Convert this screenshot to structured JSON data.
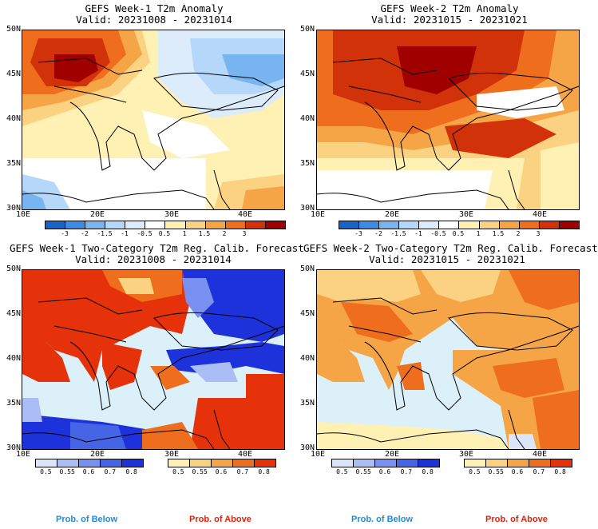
{
  "panels": [
    {
      "id": "p1",
      "title_line1": "GEFS Week-1 T2m Anomaly",
      "title_line2": "Valid: 20231008 - 20231014",
      "lat_labels": [
        "50N",
        "45N",
        "40N",
        "35N",
        "30N"
      ],
      "lon_labels": [
        "10E",
        "20E",
        "30E",
        "40E"
      ]
    },
    {
      "id": "p2",
      "title_line1": "GEFS Week-2 T2m Anomaly",
      "title_line2": "Valid: 20231015 - 20231021",
      "lat_labels": [
        "50N",
        "45N",
        "40N",
        "35N",
        "30N"
      ],
      "lon_labels": [
        "10E",
        "20E",
        "30E",
        "40E"
      ]
    },
    {
      "id": "p3",
      "title_line1": "GEFS Week-1 Two-Category T2m Reg. Calib. Forecast",
      "title_line2": "Valid: 20231008 - 20231014",
      "lat_labels": [
        "50N",
        "45N",
        "40N",
        "35N",
        "30N"
      ],
      "lon_labels": [
        "10E",
        "20E",
        "30E",
        "40E"
      ]
    },
    {
      "id": "p4",
      "title_line1": "GEFS Week-2 Two-Category T2m Reg. Calib. Forecast",
      "title_line2": "Valid: 20231015 - 20231021",
      "lat_labels": [
        "50N",
        "45N",
        "40N",
        "35N",
        "30N"
      ],
      "lon_labels": [
        "10E",
        "20E",
        "30E",
        "40E"
      ]
    }
  ],
  "anomaly_colorbar": {
    "labels": [
      "-3",
      "-2",
      "-1.5",
      "-1",
      "-0.5",
      "0.5",
      "1",
      "1.5",
      "2",
      "3"
    ],
    "colors": [
      "#1a64c8",
      "#3c8ce6",
      "#78b4f0",
      "#b4d7fa",
      "#dcecfa",
      "#ffffff",
      "#fff0b4",
      "#fad282",
      "#f5a546",
      "#ee6e1e",
      "#d2320a",
      "#a00000"
    ]
  },
  "below_colorbar": {
    "labels": [
      "0.5",
      "0.55",
      "0.6",
      "0.7",
      "0.8"
    ],
    "colors": [
      "#dce6fa",
      "#aabdf5",
      "#7891f0",
      "#4664e6",
      "#1e32dc"
    ]
  },
  "above_colorbar": {
    "labels": [
      "0.5",
      "0.55",
      "0.6",
      "0.7",
      "0.8"
    ],
    "colors": [
      "#fff0b4",
      "#fad282",
      "#f5a546",
      "#ee6e1e",
      "#e6320a"
    ]
  },
  "legend": {
    "below_label": "Prob. of Below",
    "above_label": "Prob. of Above",
    "below_color": "#1e8cdc",
    "above_color": "#e61e0a"
  },
  "map_colors": {
    "sea": "#dcf0fa",
    "border": "#000000"
  }
}
